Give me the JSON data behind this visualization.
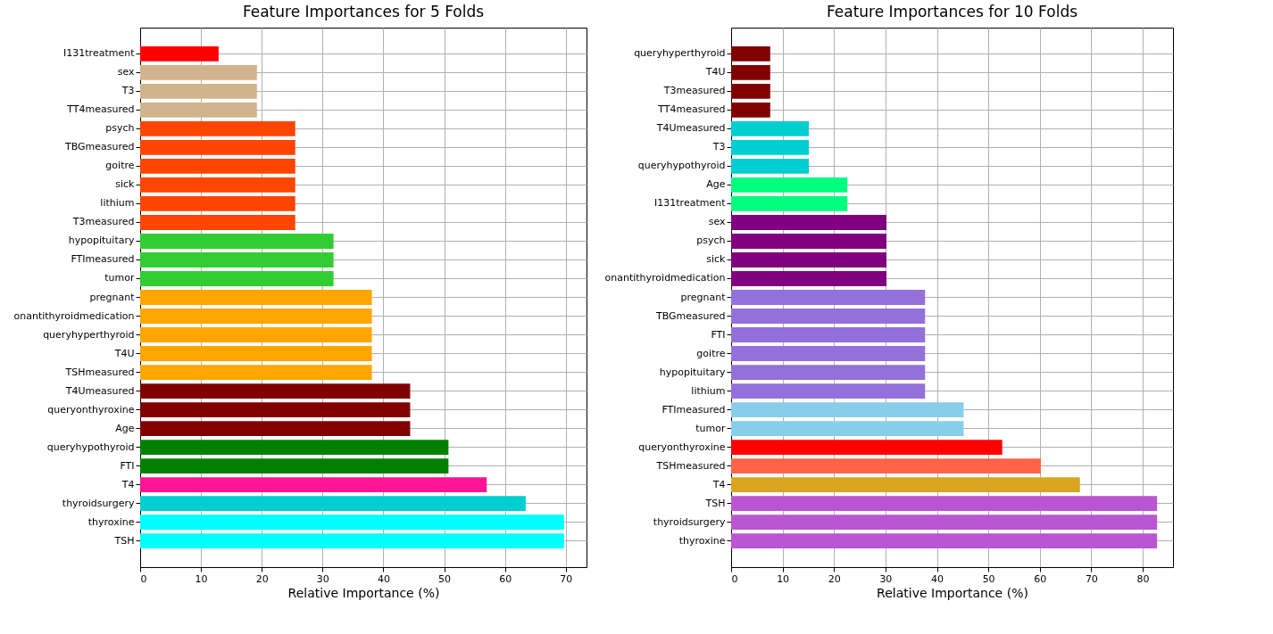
{
  "chart_data": [
    {
      "type": "bar",
      "orientation": "horizontal",
      "title": "Feature Importances for 5 Folds",
      "xlabel": "Relative Importance (%)",
      "categories": [
        "I131treatment",
        "sex",
        "T3",
        "TT4measured",
        "psych",
        "TBGmeasured",
        "goitre",
        "sick",
        "lithium",
        "T3measured",
        "hypopituitary",
        "FTImeasured",
        "tumor",
        "pregnant",
        "onantithyroidmedication",
        "queryhyperthyroid",
        "T4U",
        "TSHmeasured",
        "T4Umeasured",
        "queryonthyroxine",
        "Age",
        "queryhypothyroid",
        "FTI",
        "T4",
        "thyroidsurgery",
        "thyroxine",
        "TSH"
      ],
      "values": [
        12.9,
        19.2,
        19.2,
        19.2,
        25.5,
        25.5,
        25.5,
        25.5,
        25.5,
        25.5,
        31.8,
        31.8,
        31.8,
        38.1,
        38.1,
        38.1,
        38.1,
        38.1,
        44.4,
        44.4,
        44.4,
        50.7,
        50.7,
        57.0,
        63.4,
        69.7,
        69.7
      ],
      "colors": [
        "#ff0000",
        "#d2b48c",
        "#d2b48c",
        "#d2b48c",
        "#ff4500",
        "#ff4500",
        "#ff4500",
        "#ff4500",
        "#ff4500",
        "#ff4500",
        "#32cd32",
        "#32cd32",
        "#32cd32",
        "#ffa500",
        "#ffa500",
        "#ffa500",
        "#ffa500",
        "#ffa500",
        "#800000",
        "#800000",
        "#800000",
        "#008000",
        "#008000",
        "#ff1493",
        "#00ced1",
        "#00ffff",
        "#00ffff"
      ],
      "xlim": [
        0,
        73.4
      ],
      "xticks": [
        0,
        10,
        20,
        30,
        40,
        50,
        60,
        70
      ],
      "grid": true
    },
    {
      "type": "bar",
      "orientation": "horizontal",
      "title": "Feature Importances for 10 Folds",
      "xlabel": "Relative Importance (%)",
      "categories": [
        "queryhyperthyroid",
        "T4U",
        "T3measured",
        "TT4measured",
        "T4Umeasured",
        "T3",
        "queryhypothyroid",
        "Age",
        "I131treatment",
        "sex",
        "psych",
        "sick",
        "onantithyroidmedication",
        "pregnant",
        "TBGmeasured",
        "FTI",
        "goitre",
        "hypopituitary",
        "lithium",
        "FTImeasured",
        "tumor",
        "queryonthyroxine",
        "TSHmeasured",
        "T4",
        "TSH",
        "thyroidsurgery",
        "thyroxine"
      ],
      "values": [
        7.6,
        7.6,
        7.6,
        7.6,
        15.1,
        15.1,
        15.1,
        22.6,
        22.6,
        30.2,
        30.2,
        30.2,
        30.2,
        37.7,
        37.7,
        37.7,
        37.7,
        37.7,
        37.7,
        45.2,
        45.2,
        52.7,
        60.2,
        67.8,
        82.8,
        82.8,
        82.8
      ],
      "colors": [
        "#800000",
        "#800000",
        "#800000",
        "#800000",
        "#00ced1",
        "#00ced1",
        "#00ced1",
        "#00ff7f",
        "#00ff7f",
        "#800080",
        "#800080",
        "#800080",
        "#800080",
        "#9370db",
        "#9370db",
        "#9370db",
        "#9370db",
        "#9370db",
        "#9370db",
        "#87ceeb",
        "#87ceeb",
        "#ff0000",
        "#ff6347",
        "#daa520",
        "#ba55d3",
        "#ba55d3",
        "#ba55d3"
      ],
      "xlim": [
        0,
        85.9
      ],
      "xticks": [
        0,
        10,
        20,
        30,
        40,
        50,
        60,
        70,
        80
      ],
      "grid": true
    }
  ]
}
